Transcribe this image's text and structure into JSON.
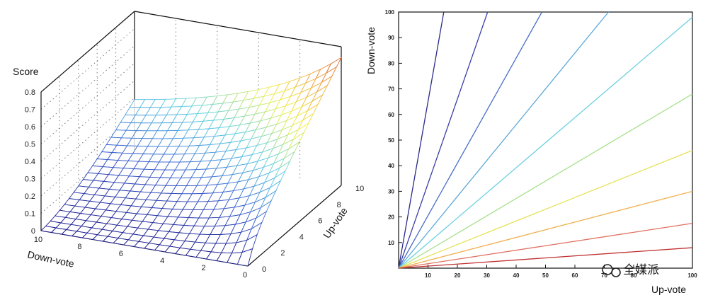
{
  "chart_data": [
    {
      "type": "surface",
      "zlabel": "Score",
      "xlabel": "Down-vote",
      "ylabel": "Up-vote",
      "x_range": [
        0,
        10
      ],
      "y_range": [
        0,
        10
      ],
      "z_range": [
        0,
        0.8
      ],
      "x_ticks": [
        "10",
        "8",
        "6",
        "4",
        "2",
        "0"
      ],
      "y_ticks": [
        "0",
        "2",
        "4",
        "6",
        "8",
        "10"
      ],
      "z_ticks": [
        "0",
        "0.1",
        "0.2",
        "0.3",
        "0.4",
        "0.5",
        "0.6",
        "0.7",
        "0.8"
      ],
      "z_tick_labels": [
        "0",
        "0.1",
        "0.2",
        "0.3",
        "0.4",
        "0.5",
        "0.6",
        "0.7",
        "0.8"
      ],
      "surface_grid": {
        "x": [
          0,
          10
        ],
        "y": [
          0,
          10
        ],
        "steps": 20
      },
      "colormap": [
        "#1c1c8c",
        "#3a5fd0",
        "#5fd0e6",
        "#f2f24a",
        "#f09a3a",
        "#cc2020"
      ],
      "grid": true
    },
    {
      "type": "line",
      "xlabel": "Up-vote",
      "ylabel": "Down-vote",
      "xlim": [
        0,
        100
      ],
      "ylim": [
        0,
        100
      ],
      "x_ticks": [
        "10",
        "20",
        "30",
        "40",
        "50",
        "60",
        "70",
        "80",
        "100"
      ],
      "y_ticks": [
        "10",
        "20",
        "30",
        "40",
        "50",
        "60",
        "70",
        "80",
        "90",
        "100"
      ],
      "contour_slopes": [
        6.5,
        3.3,
        2.05,
        1.4,
        0.98,
        0.68,
        0.46,
        0.3,
        0.175,
        0.08
      ],
      "contour_colors": [
        "#2a2a8a",
        "#3b3fa8",
        "#4a6fc8",
        "#5aa8d8",
        "#6cd0e0",
        "#a6e08a",
        "#e6e25a",
        "#f0b050",
        "#e07060",
        "#c03030"
      ],
      "grid": false
    }
  ],
  "watermark": "全媒派"
}
